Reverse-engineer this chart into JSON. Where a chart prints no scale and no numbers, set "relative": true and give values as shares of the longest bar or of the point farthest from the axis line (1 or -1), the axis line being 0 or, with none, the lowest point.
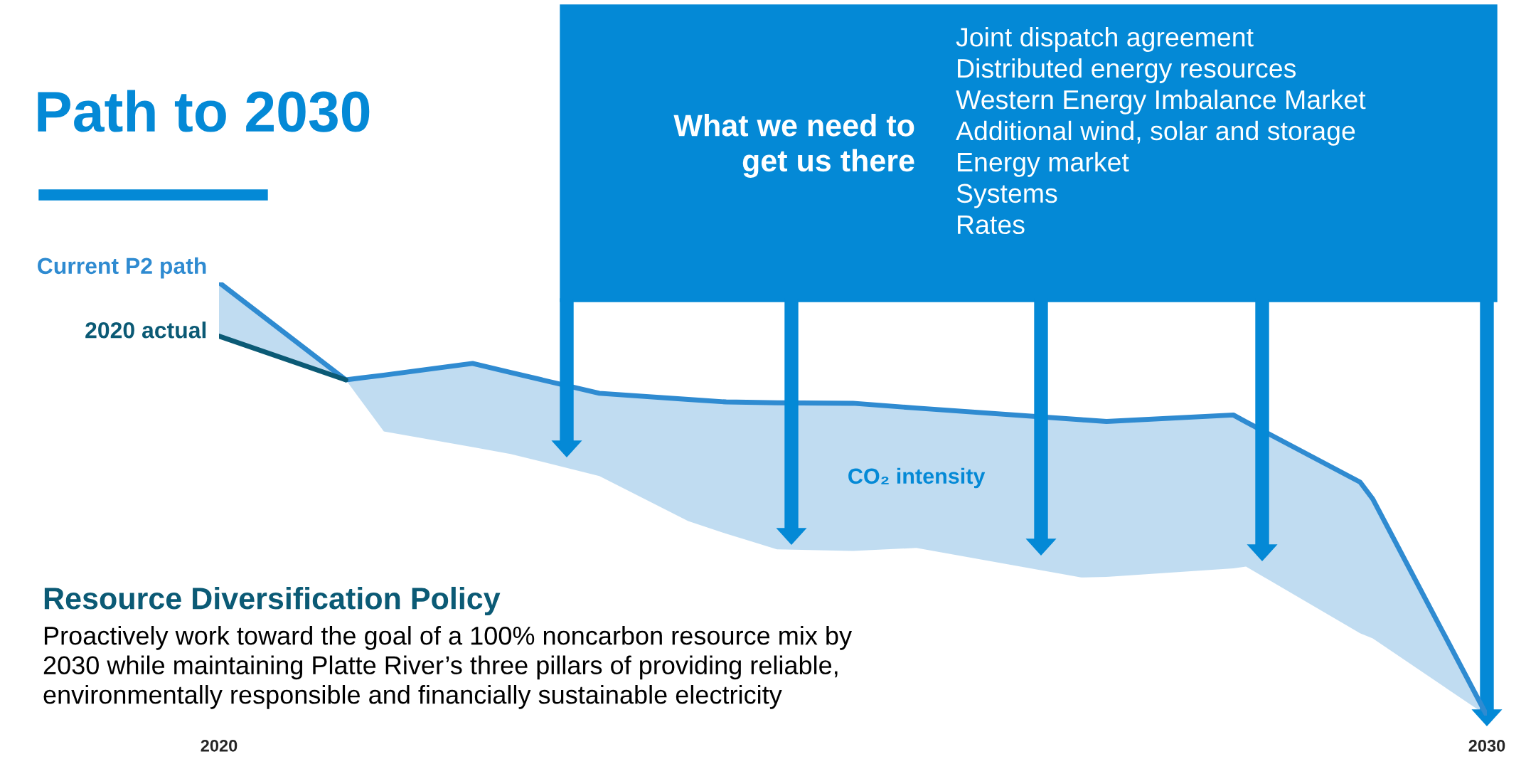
{
  "chart_data": {
    "type": "line",
    "relative": true,
    "title": "Path to 2030",
    "subtitle": "Resource Diversification Policy",
    "xlim": [
      2020,
      2030
    ],
    "xticks": [
      2020,
      2030
    ],
    "series": [
      {
        "name": "Current P2 path",
        "color": "#2f8bd1",
        "x": [
          2020,
          2021,
          2021.3,
          2022,
          2022.3,
          2023,
          2023.7,
          2024,
          2024.4,
          2025,
          2025.5,
          2026.8,
          2027,
          2028,
          2028.1,
          2029,
          2029.1,
          2030
        ],
        "values": [
          1.0,
          0.775,
          0.786,
          0.813,
          0.792,
          0.744,
          0.73,
          0.724,
          0.722,
          0.721,
          0.71,
          0.683,
          0.679,
          0.694,
          0.678,
          0.539,
          0.5,
          0
        ],
        "upper": [
          1.0,
          0.775,
          0.786,
          0.813,
          0.792,
          0.744,
          0.73,
          0.724,
          0.722,
          0.721,
          0.71,
          0.683,
          0.679,
          0.694,
          0.678,
          0.539,
          0.5,
          0
        ],
        "lower": [
          0.876,
          0.775,
          0.656,
          0.62,
          0.604,
          0.553,
          0.449,
          0.42,
          0.384,
          0.38,
          0.387,
          0.319,
          0.32,
          0.34,
          0.344,
          0.19,
          0.178,
          0
        ]
      },
      {
        "name": "2020 actual",
        "color": "#0b5a75",
        "x": [
          2020,
          2021
        ],
        "values": [
          0.876,
          0.775
        ]
      }
    ],
    "annotations": [
      "CO₂ intensity",
      "What we need to\nget us there",
      "Joint dispatch agreement\nDistributed energy resources\nWestern Energy Imbalance Market\nAdditional wind, solar and storage\nEnergy market\nSystems\nRates",
      "Proactively work toward the goal of a 100% noncarbon resource mix by\n2030 while maintaining Platte River’s three pillars of providing reliable,\nenvironmentally responsible and financially sustainable electricity"
    ]
  }
}
